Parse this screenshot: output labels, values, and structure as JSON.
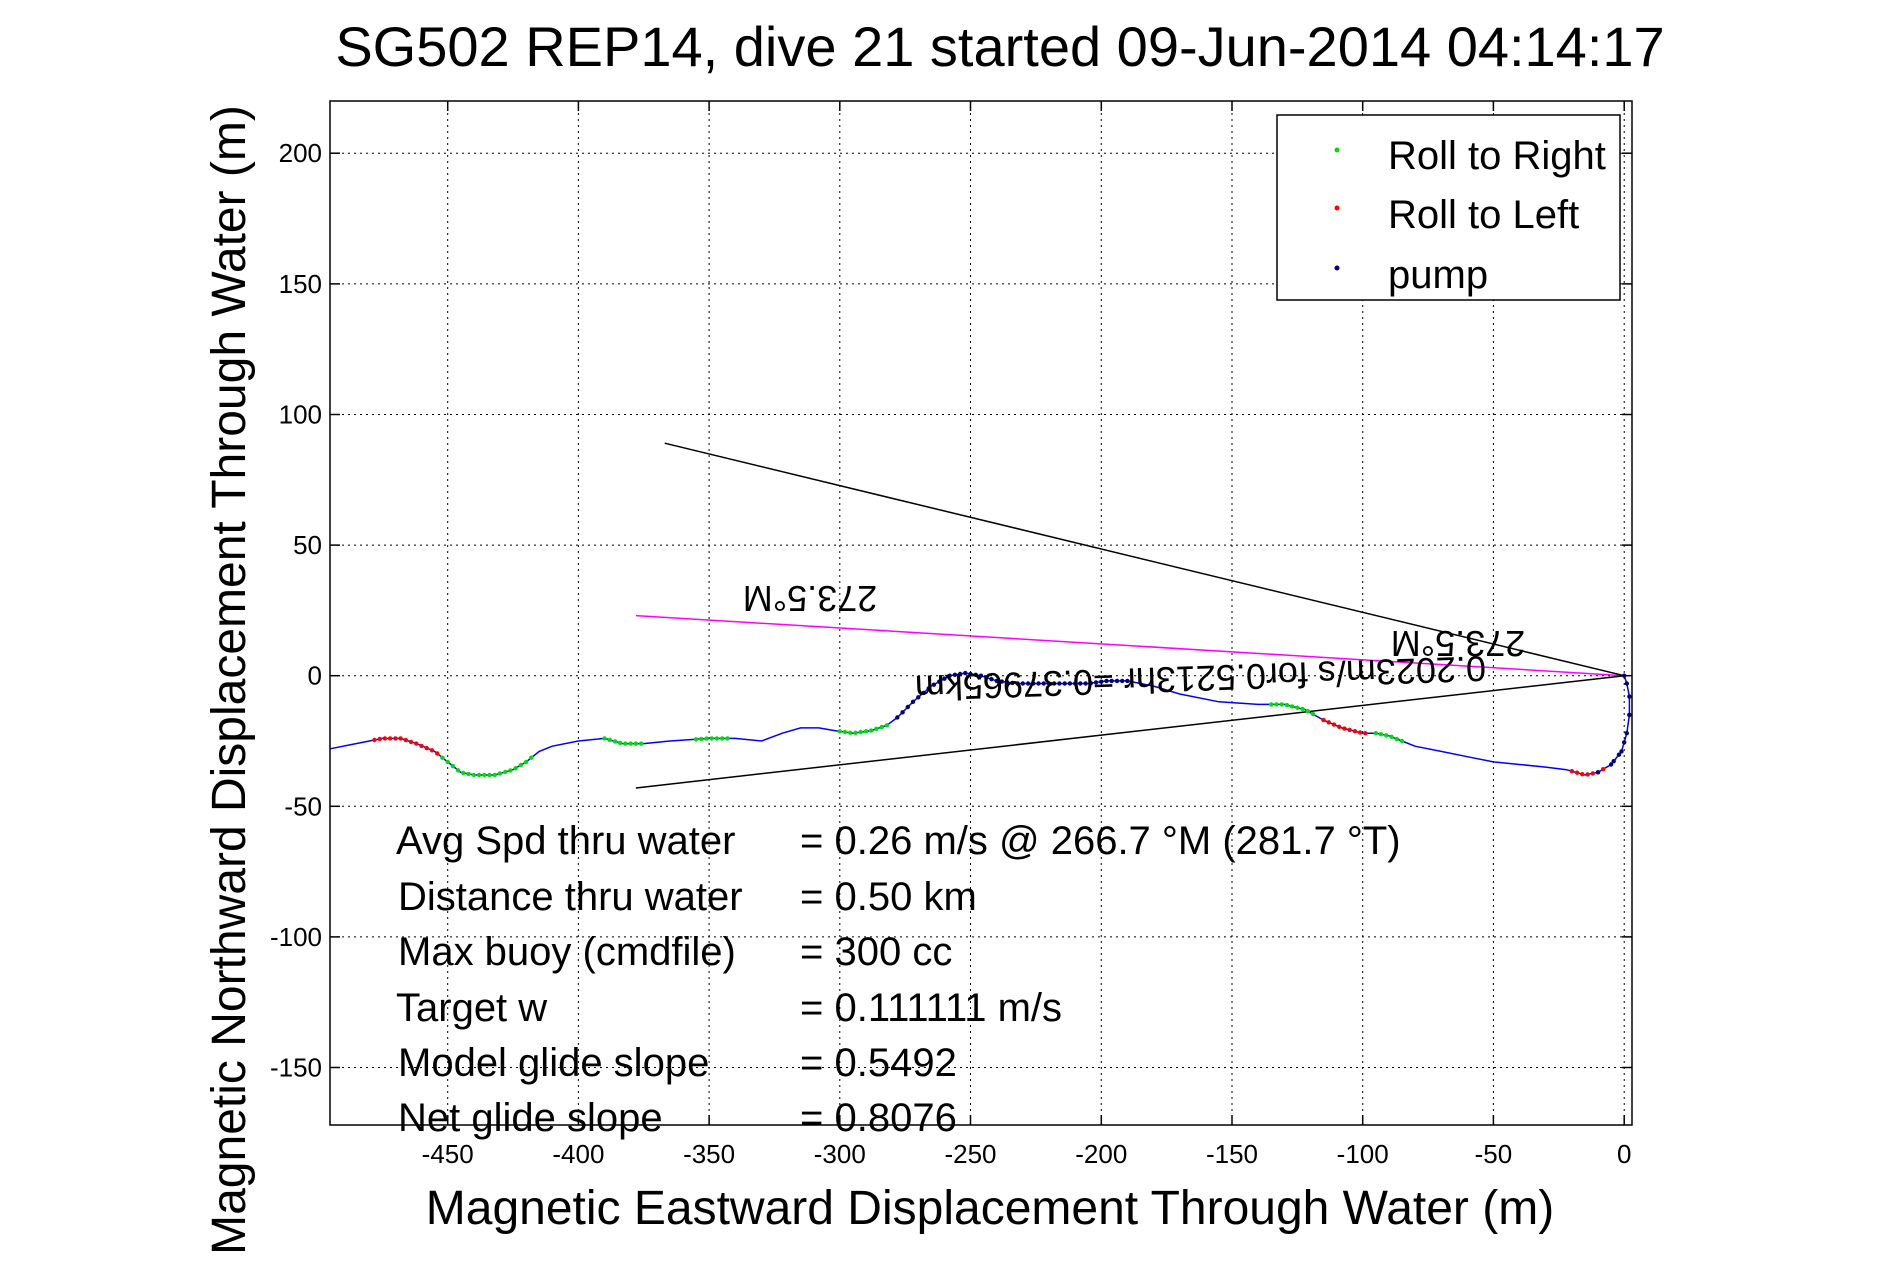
{
  "chart_data": {
    "type": "scatter",
    "title": "SG502 REP14, dive 21 started 09-Jun-2014 04:14:17",
    "xlabel": "Magnetic Eastward Displacement Through Water (m)",
    "ylabel": "Magnetic Northward Displacement Through Water (m)",
    "xlim": [
      -495,
      3
    ],
    "ylim": [
      -172,
      220
    ],
    "xticks": [
      -450,
      -400,
      -350,
      -300,
      -250,
      -200,
      -150,
      -100,
      -50,
      0
    ],
    "yticks": [
      -150,
      -100,
      -50,
      0,
      50,
      100,
      150,
      200
    ],
    "grid": true,
    "legend_position": "top-right",
    "legend": [
      {
        "name": "Roll to Right",
        "color": "#00dd00"
      },
      {
        "name": "Roll to Left",
        "color": "#ff0000"
      },
      {
        "name": "pump",
        "color": "#000080"
      }
    ],
    "track": {
      "color": "#0000ff",
      "points": [
        [
          -495,
          -28
        ],
        [
          -485,
          -26
        ],
        [
          -475,
          -24
        ],
        [
          -468,
          -24
        ],
        [
          -462,
          -26
        ],
        [
          -455,
          -29
        ],
        [
          -450,
          -33
        ],
        [
          -445,
          -37
        ],
        [
          -440,
          -38
        ],
        [
          -432,
          -38
        ],
        [
          -425,
          -36
        ],
        [
          -420,
          -33
        ],
        [
          -415,
          -29
        ],
        [
          -410,
          -27
        ],
        [
          -400,
          -25
        ],
        [
          -390,
          -24
        ],
        [
          -383,
          -26
        ],
        [
          -375,
          -26
        ],
        [
          -365,
          -25
        ],
        [
          -350,
          -24
        ],
        [
          -340,
          -24
        ],
        [
          -330,
          -25
        ],
        [
          -322,
          -22
        ],
        [
          -315,
          -20
        ],
        [
          -308,
          -20
        ],
        [
          -302,
          -21
        ],
        [
          -295,
          -22
        ],
        [
          -288,
          -21
        ],
        [
          -282,
          -19
        ],
        [
          -278,
          -16
        ],
        [
          -272,
          -10
        ],
        [
          -265,
          -4
        ],
        [
          -258,
          0
        ],
        [
          -252,
          1
        ],
        [
          -246,
          0
        ],
        [
          -240,
          -2
        ],
        [
          -232,
          -3
        ],
        [
          -225,
          -3
        ],
        [
          -215,
          -3
        ],
        [
          -205,
          -3
        ],
        [
          -198,
          -2
        ],
        [
          -190,
          -2
        ],
        [
          -180,
          -4
        ],
        [
          -170,
          -7
        ],
        [
          -155,
          -10
        ],
        [
          -140,
          -11
        ],
        [
          -130,
          -11
        ],
        [
          -122,
          -13
        ],
        [
          -115,
          -17
        ],
        [
          -108,
          -20
        ],
        [
          -100,
          -22
        ],
        [
          -95,
          -22
        ],
        [
          -90,
          -23
        ],
        [
          -85,
          -25
        ],
        [
          -80,
          -27
        ],
        [
          -70,
          -29
        ],
        [
          -60,
          -31
        ],
        [
          -50,
          -33
        ],
        [
          -40,
          -34
        ],
        [
          -30,
          -35
        ],
        [
          -22,
          -36
        ],
        [
          -15,
          -38
        ],
        [
          -10,
          -37
        ],
        [
          -5,
          -34
        ],
        [
          -1,
          -29
        ],
        [
          1,
          -22
        ],
        [
          2,
          -15
        ],
        [
          2,
          -8
        ],
        [
          1,
          -3
        ],
        [
          0,
          0
        ]
      ]
    },
    "segments": [
      {
        "series": "Roll to Right",
        "x_range": [
          -452,
          -418
        ]
      },
      {
        "series": "Roll to Right",
        "x_range": [
          -390,
          -375
        ]
      },
      {
        "series": "Roll to Right",
        "x_range": [
          -355,
          -342
        ]
      },
      {
        "series": "Roll to Right",
        "x_range": [
          -300,
          -282
        ]
      },
      {
        "series": "Roll to Right",
        "x_range": [
          -135,
          -118
        ]
      },
      {
        "series": "Roll to Right",
        "x_range": [
          -95,
          -85
        ]
      },
      {
        "series": "Roll to Left",
        "x_range": [
          -478,
          -462
        ]
      },
      {
        "series": "Roll to Left",
        "x_range": [
          -460,
          -453
        ]
      },
      {
        "series": "Roll to Left",
        "x_range": [
          -115,
          -98
        ]
      },
      {
        "series": "Roll to Left",
        "x_range": [
          -20,
          -8
        ]
      },
      {
        "series": "pump",
        "x_range": [
          -278,
          -190
        ]
      },
      {
        "series": "pump",
        "x_range": [
          -4,
          2
        ]
      }
    ],
    "lines": [
      {
        "color": "#ff00ff",
        "points": [
          [
            -378,
            23
          ],
          [
            0,
            0
          ]
        ]
      },
      {
        "color": "#000000",
        "points": [
          [
            -367,
            89
          ],
          [
            0,
            0
          ]
        ]
      },
      {
        "color": "#000000",
        "points": [
          [
            -378,
            -43
          ],
          [
            0,
            0
          ]
        ]
      }
    ],
    "annotations": {
      "label_a": "273.5°M",
      "label_b": "273.5°M",
      "label_c": "0.2023m/s for0.5213hr =0.37965km"
    },
    "stats": [
      {
        "label": "Avg Spd thru water",
        "value": "=  0.26 m/s @ 266.7 °M (281.7 °T)"
      },
      {
        "label": "Distance thru water",
        "value": "=  0.50 km"
      },
      {
        "label": "Max buoy (cmdfile)",
        "value": "= 300 cc"
      },
      {
        "label": "Target w",
        "value": "= 0.111111 m/s"
      },
      {
        "label": "Model glide slope",
        "value": "= 0.5492"
      },
      {
        "label": "Net glide slope",
        "value": "= 0.8076"
      }
    ]
  }
}
